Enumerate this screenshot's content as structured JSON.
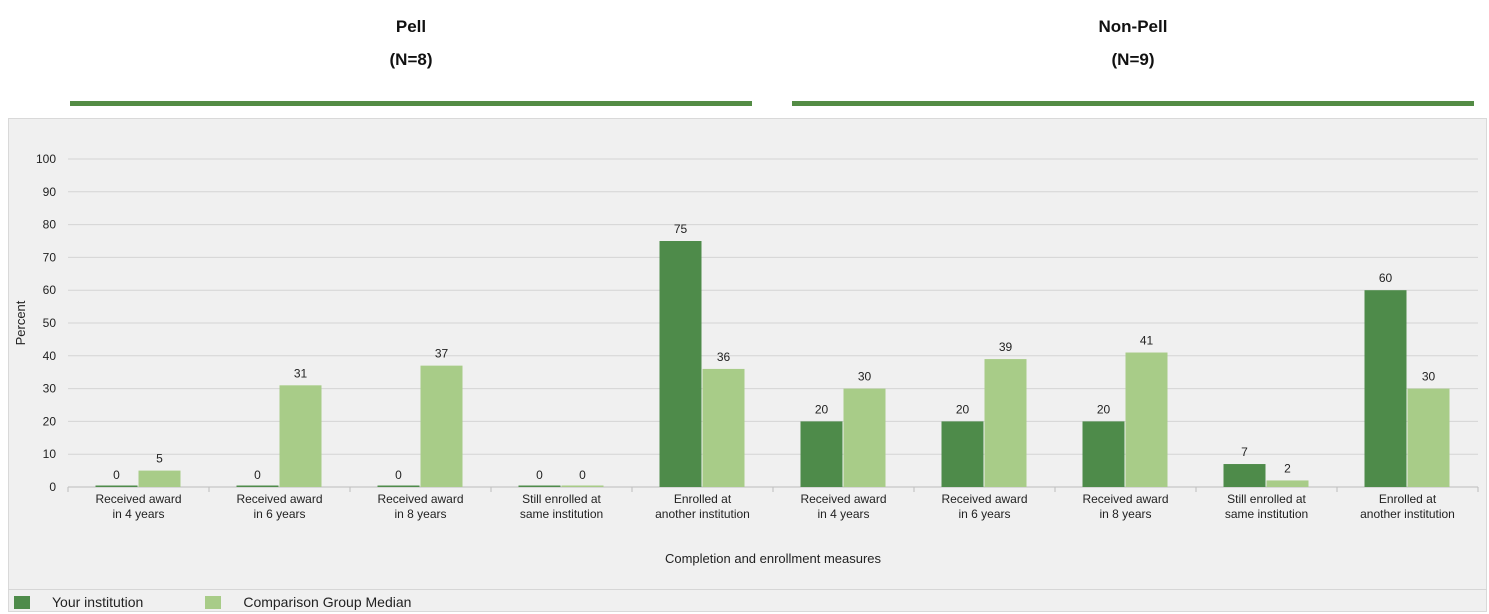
{
  "groups": [
    {
      "name": "Pell",
      "n": "(N=8)"
    },
    {
      "name": "Non-Pell",
      "n": "(N=9)"
    }
  ],
  "legend": {
    "items": [
      {
        "label": "Your institution",
        "color": "#4e8b4a"
      },
      {
        "label": "Comparison Group Median",
        "color": "#a8cc88"
      }
    ]
  },
  "chart_data": {
    "type": "bar",
    "ylabel": "Percent",
    "xlabel": "Completion and enrollment measures",
    "ylim": [
      0,
      100
    ],
    "yticks": [
      0,
      10,
      20,
      30,
      40,
      50,
      60,
      70,
      80,
      90,
      100
    ],
    "grid": true,
    "legend_position": "bottom-left",
    "categories": [
      [
        "Received award",
        "in 4 years"
      ],
      [
        "Received award",
        "in 6 years"
      ],
      [
        "Received award",
        "in 8 years"
      ],
      [
        "Still enrolled at",
        "same institution"
      ],
      [
        "Enrolled at",
        "another institution"
      ],
      [
        "Received award",
        "in 4 years"
      ],
      [
        "Received award",
        "in 6 years"
      ],
      [
        "Received award",
        "in 8 years"
      ],
      [
        "Still enrolled at",
        "same institution"
      ],
      [
        "Enrolled at",
        "another institution"
      ]
    ],
    "category_group": [
      "Pell",
      "Pell",
      "Pell",
      "Pell",
      "Pell",
      "Non-Pell",
      "Non-Pell",
      "Non-Pell",
      "Non-Pell",
      "Non-Pell"
    ],
    "series": [
      {
        "name": "Your institution",
        "color": "#4e8b4a",
        "values": [
          0,
          0,
          0,
          0,
          75,
          20,
          20,
          20,
          7,
          60
        ]
      },
      {
        "name": "Comparison Group Median",
        "color": "#a8cc88",
        "values": [
          5,
          31,
          37,
          0,
          36,
          30,
          39,
          41,
          2,
          30
        ]
      }
    ]
  }
}
